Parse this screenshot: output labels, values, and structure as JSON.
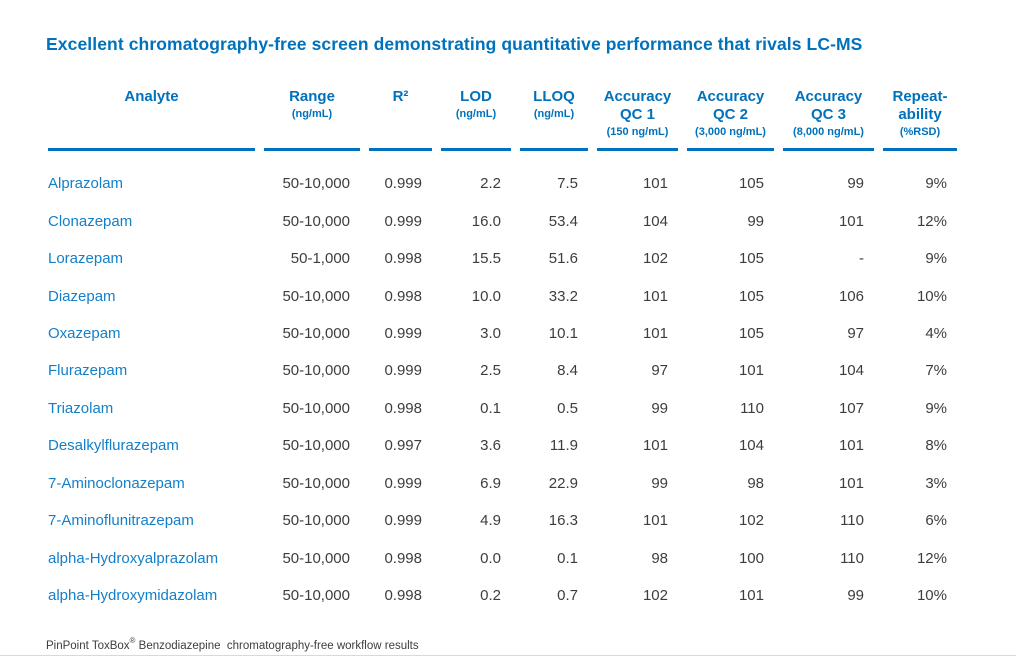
{
  "title": "Excellent chromatography-free screen demonstrating quantitative performance that rivals LC-MS",
  "colors": {
    "brand_blue": "#0071bc",
    "analyte_blue": "#1480ca",
    "data_gray": "#3d3d3d",
    "bottom_rule_gray": "#d9d9d9"
  },
  "chart_data": {
    "type": "table",
    "title": "Excellent chromatography-free screen demonstrating quantitative performance that rivals LC-MS",
    "column_headers": [
      {
        "main": [
          "Analyte"
        ],
        "sub": ""
      },
      {
        "main": [
          "Range"
        ],
        "sub": "(ng/mL)"
      },
      {
        "main": [
          "R²"
        ],
        "sub": ""
      },
      {
        "main": [
          "LOD"
        ],
        "sub": "(ng/mL)"
      },
      {
        "main": [
          "LLOQ"
        ],
        "sub": "(ng/mL)"
      },
      {
        "main": [
          "Accuracy",
          "QC 1"
        ],
        "sub": "(150 ng/mL)"
      },
      {
        "main": [
          "Accuracy",
          "QC 2"
        ],
        "sub": "(3,000 ng/mL)"
      },
      {
        "main": [
          "Accuracy",
          "QC 3"
        ],
        "sub": "(8,000 ng/mL)"
      },
      {
        "main": [
          "Repeat-",
          "ability"
        ],
        "sub": "(%RSD)"
      }
    ],
    "rows": [
      {
        "analyte": "Alprazolam",
        "range": "50-10,000",
        "r2": "0.999",
        "lod": "2.2",
        "lloq": "7.5",
        "qc1": "101",
        "qc2": "105",
        "qc3": "99",
        "rsd": "9%"
      },
      {
        "analyte": "Clonazepam",
        "range": "50-10,000",
        "r2": "0.999",
        "lod": "16.0",
        "lloq": "53.4",
        "qc1": "104",
        "qc2": "99",
        "qc3": "101",
        "rsd": "12%"
      },
      {
        "analyte": "Lorazepam",
        "range": "50-1,000",
        "r2": "0.998",
        "lod": "15.5",
        "lloq": "51.6",
        "qc1": "102",
        "qc2": "105",
        "qc3": "-",
        "rsd": "9%"
      },
      {
        "analyte": "Diazepam",
        "range": "50-10,000",
        "r2": "0.998",
        "lod": "10.0",
        "lloq": "33.2",
        "qc1": "101",
        "qc2": "105",
        "qc3": "106",
        "rsd": "10%"
      },
      {
        "analyte": "Oxazepam",
        "range": "50-10,000",
        "r2": "0.999",
        "lod": "3.0",
        "lloq": "10.1",
        "qc1": "101",
        "qc2": "105",
        "qc3": "97",
        "rsd": "4%"
      },
      {
        "analyte": "Flurazepam",
        "range": "50-10,000",
        "r2": "0.999",
        "lod": "2.5",
        "lloq": "8.4",
        "qc1": "97",
        "qc2": "101",
        "qc3": "104",
        "rsd": "7%"
      },
      {
        "analyte": "Triazolam",
        "range": "50-10,000",
        "r2": "0.998",
        "lod": "0.1",
        "lloq": "0.5",
        "qc1": "99",
        "qc2": "110",
        "qc3": "107",
        "rsd": "9%"
      },
      {
        "analyte": "Desalkylflurazepam",
        "range": "50-10,000",
        "r2": "0.997",
        "lod": "3.6",
        "lloq": "11.9",
        "qc1": "101",
        "qc2": "104",
        "qc3": "101",
        "rsd": "8%"
      },
      {
        "analyte": "7-Aminoclonazepam",
        "range": "50-10,000",
        "r2": "0.999",
        "lod": "6.9",
        "lloq": "22.9",
        "qc1": "99",
        "qc2": "98",
        "qc3": "101",
        "rsd": "3%"
      },
      {
        "analyte": "7-Aminoflunitrazepam",
        "range": "50-10,000",
        "r2": "0.999",
        "lod": "4.9",
        "lloq": "16.3",
        "qc1": "101",
        "qc2": "102",
        "qc3": "110",
        "rsd": "6%"
      },
      {
        "analyte": "alpha-Hydroxyalprazolam",
        "range": "50-10,000",
        "r2": "0.998",
        "lod": "0.0",
        "lloq": "0.1",
        "qc1": "98",
        "qc2": "100",
        "qc3": "110",
        "rsd": "12%"
      },
      {
        "analyte": "alpha-Hydroxymidazolam",
        "range": "50-10,000",
        "r2": "0.998",
        "lod": "0.2",
        "lloq": "0.7",
        "qc1": "102",
        "qc2": "101",
        "qc3": "99",
        "rsd": "10%"
      }
    ]
  },
  "footer": {
    "product": "PinPoint ToxBox",
    "reg_mark": "®",
    "rest": " Benzodiazepine  chromatography-free workflow results"
  }
}
